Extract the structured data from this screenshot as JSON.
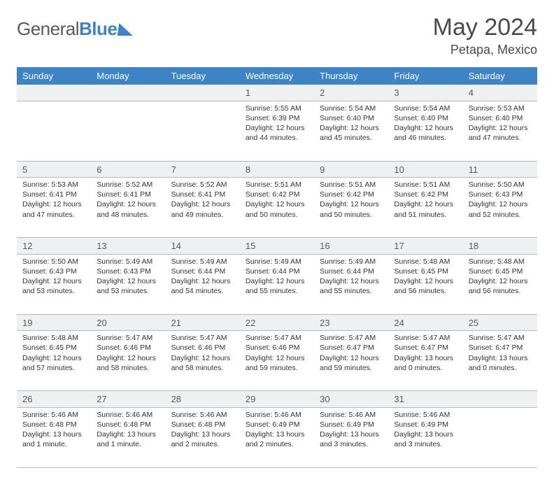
{
  "brand": {
    "general": "General",
    "blue": "Blue"
  },
  "title": "May 2024",
  "location": "Petapa, Mexico",
  "colors": {
    "header_bg": "#3d84c6",
    "header_text": "#ffffff",
    "daynum_bg": "#eef0f2",
    "border": "#b8b8b8",
    "body_text": "#333333",
    "title_text": "#4a4a4a"
  },
  "dow": [
    "Sunday",
    "Monday",
    "Tuesday",
    "Wednesday",
    "Thursday",
    "Friday",
    "Saturday"
  ],
  "weeks": [
    [
      null,
      null,
      null,
      {
        "n": "1",
        "sr": "Sunrise: 5:55 AM",
        "ss": "Sunset: 6:39 PM",
        "d1": "Daylight: 12 hours",
        "d2": "and 44 minutes."
      },
      {
        "n": "2",
        "sr": "Sunrise: 5:54 AM",
        "ss": "Sunset: 6:40 PM",
        "d1": "Daylight: 12 hours",
        "d2": "and 45 minutes."
      },
      {
        "n": "3",
        "sr": "Sunrise: 5:54 AM",
        "ss": "Sunset: 6:40 PM",
        "d1": "Daylight: 12 hours",
        "d2": "and 46 minutes."
      },
      {
        "n": "4",
        "sr": "Sunrise: 5:53 AM",
        "ss": "Sunset: 6:40 PM",
        "d1": "Daylight: 12 hours",
        "d2": "and 47 minutes."
      }
    ],
    [
      {
        "n": "5",
        "sr": "Sunrise: 5:53 AM",
        "ss": "Sunset: 6:41 PM",
        "d1": "Daylight: 12 hours",
        "d2": "and 47 minutes."
      },
      {
        "n": "6",
        "sr": "Sunrise: 5:52 AM",
        "ss": "Sunset: 6:41 PM",
        "d1": "Daylight: 12 hours",
        "d2": "and 48 minutes."
      },
      {
        "n": "7",
        "sr": "Sunrise: 5:52 AM",
        "ss": "Sunset: 6:41 PM",
        "d1": "Daylight: 12 hours",
        "d2": "and 49 minutes."
      },
      {
        "n": "8",
        "sr": "Sunrise: 5:51 AM",
        "ss": "Sunset: 6:42 PM",
        "d1": "Daylight: 12 hours",
        "d2": "and 50 minutes."
      },
      {
        "n": "9",
        "sr": "Sunrise: 5:51 AM",
        "ss": "Sunset: 6:42 PM",
        "d1": "Daylight: 12 hours",
        "d2": "and 50 minutes."
      },
      {
        "n": "10",
        "sr": "Sunrise: 5:51 AM",
        "ss": "Sunset: 6:42 PM",
        "d1": "Daylight: 12 hours",
        "d2": "and 51 minutes."
      },
      {
        "n": "11",
        "sr": "Sunrise: 5:50 AM",
        "ss": "Sunset: 6:43 PM",
        "d1": "Daylight: 12 hours",
        "d2": "and 52 minutes."
      }
    ],
    [
      {
        "n": "12",
        "sr": "Sunrise: 5:50 AM",
        "ss": "Sunset: 6:43 PM",
        "d1": "Daylight: 12 hours",
        "d2": "and 53 minutes."
      },
      {
        "n": "13",
        "sr": "Sunrise: 5:49 AM",
        "ss": "Sunset: 6:43 PM",
        "d1": "Daylight: 12 hours",
        "d2": "and 53 minutes."
      },
      {
        "n": "14",
        "sr": "Sunrise: 5:49 AM",
        "ss": "Sunset: 6:44 PM",
        "d1": "Daylight: 12 hours",
        "d2": "and 54 minutes."
      },
      {
        "n": "15",
        "sr": "Sunrise: 5:49 AM",
        "ss": "Sunset: 6:44 PM",
        "d1": "Daylight: 12 hours",
        "d2": "and 55 minutes."
      },
      {
        "n": "16",
        "sr": "Sunrise: 5:49 AM",
        "ss": "Sunset: 6:44 PM",
        "d1": "Daylight: 12 hours",
        "d2": "and 55 minutes."
      },
      {
        "n": "17",
        "sr": "Sunrise: 5:48 AM",
        "ss": "Sunset: 6:45 PM",
        "d1": "Daylight: 12 hours",
        "d2": "and 56 minutes."
      },
      {
        "n": "18",
        "sr": "Sunrise: 5:48 AM",
        "ss": "Sunset: 6:45 PM",
        "d1": "Daylight: 12 hours",
        "d2": "and 56 minutes."
      }
    ],
    [
      {
        "n": "19",
        "sr": "Sunrise: 5:48 AM",
        "ss": "Sunset: 6:45 PM",
        "d1": "Daylight: 12 hours",
        "d2": "and 57 minutes."
      },
      {
        "n": "20",
        "sr": "Sunrise: 5:47 AM",
        "ss": "Sunset: 6:46 PM",
        "d1": "Daylight: 12 hours",
        "d2": "and 58 minutes."
      },
      {
        "n": "21",
        "sr": "Sunrise: 5:47 AM",
        "ss": "Sunset: 6:46 PM",
        "d1": "Daylight: 12 hours",
        "d2": "and 58 minutes."
      },
      {
        "n": "22",
        "sr": "Sunrise: 5:47 AM",
        "ss": "Sunset: 6:46 PM",
        "d1": "Daylight: 12 hours",
        "d2": "and 59 minutes."
      },
      {
        "n": "23",
        "sr": "Sunrise: 5:47 AM",
        "ss": "Sunset: 6:47 PM",
        "d1": "Daylight: 12 hours",
        "d2": "and 59 minutes."
      },
      {
        "n": "24",
        "sr": "Sunrise: 5:47 AM",
        "ss": "Sunset: 6:47 PM",
        "d1": "Daylight: 13 hours",
        "d2": "and 0 minutes."
      },
      {
        "n": "25",
        "sr": "Sunrise: 5:47 AM",
        "ss": "Sunset: 6:47 PM",
        "d1": "Daylight: 13 hours",
        "d2": "and 0 minutes."
      }
    ],
    [
      {
        "n": "26",
        "sr": "Sunrise: 5:46 AM",
        "ss": "Sunset: 6:48 PM",
        "d1": "Daylight: 13 hours",
        "d2": "and 1 minute."
      },
      {
        "n": "27",
        "sr": "Sunrise: 5:46 AM",
        "ss": "Sunset: 6:48 PM",
        "d1": "Daylight: 13 hours",
        "d2": "and 1 minute."
      },
      {
        "n": "28",
        "sr": "Sunrise: 5:46 AM",
        "ss": "Sunset: 6:48 PM",
        "d1": "Daylight: 13 hours",
        "d2": "and 2 minutes."
      },
      {
        "n": "29",
        "sr": "Sunrise: 5:46 AM",
        "ss": "Sunset: 6:49 PM",
        "d1": "Daylight: 13 hours",
        "d2": "and 2 minutes."
      },
      {
        "n": "30",
        "sr": "Sunrise: 5:46 AM",
        "ss": "Sunset: 6:49 PM",
        "d1": "Daylight: 13 hours",
        "d2": "and 3 minutes."
      },
      {
        "n": "31",
        "sr": "Sunrise: 5:46 AM",
        "ss": "Sunset: 6:49 PM",
        "d1": "Daylight: 13 hours",
        "d2": "and 3 minutes."
      },
      null
    ]
  ]
}
